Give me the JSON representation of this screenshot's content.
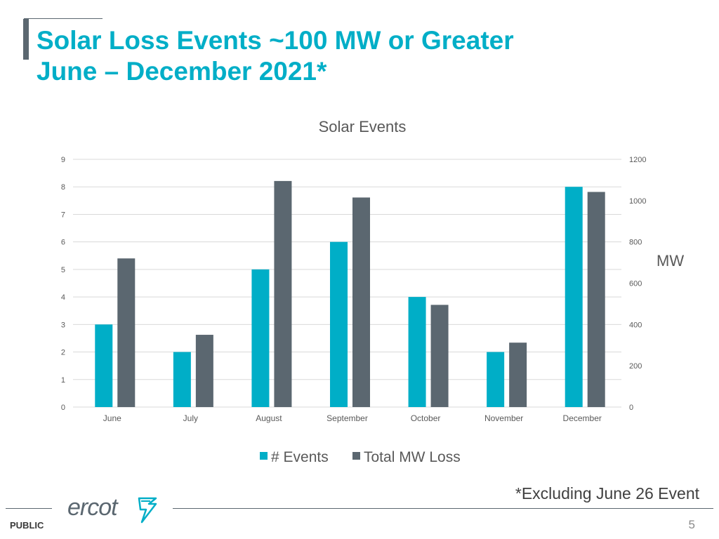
{
  "slide": {
    "title_line1": "Solar Loss Events ~100 MW or Greater",
    "title_line2": "June – December 2021*",
    "footnote": "*Excluding June 26 Event",
    "footer_label": "PUBLIC",
    "page_number": "5",
    "logo_text": "ercot"
  },
  "colors": {
    "accent": "#00aec7",
    "bar_events": "#00aec7",
    "bar_mw": "#5b6770",
    "gridline": "#d9d9d9",
    "axis_text": "#595959"
  },
  "chart_data": {
    "type": "bar",
    "title": "Solar Events",
    "categories": [
      "June",
      "July",
      "August",
      "September",
      "October",
      "November",
      "December"
    ],
    "series": [
      {
        "name": "# Events",
        "axis": "left",
        "values": [
          3,
          2,
          5,
          6,
          4,
          2,
          8
        ]
      },
      {
        "name": "Total MW Loss",
        "axis": "right",
        "values": [
          720,
          350,
          1095,
          1015,
          495,
          312,
          1042
        ]
      }
    ],
    "y_left": {
      "min": 0,
      "max": 9,
      "ticks": [
        "0",
        "1",
        "2",
        "3",
        "4",
        "5",
        "6",
        "7",
        "8",
        "9"
      ],
      "label": ""
    },
    "y_right": {
      "min": 0,
      "max": 1200,
      "ticks": [
        "0",
        "200",
        "400",
        "600",
        "800",
        "1000",
        "1200"
      ],
      "label": "MW"
    },
    "grid": true,
    "legend_position": "bottom"
  }
}
